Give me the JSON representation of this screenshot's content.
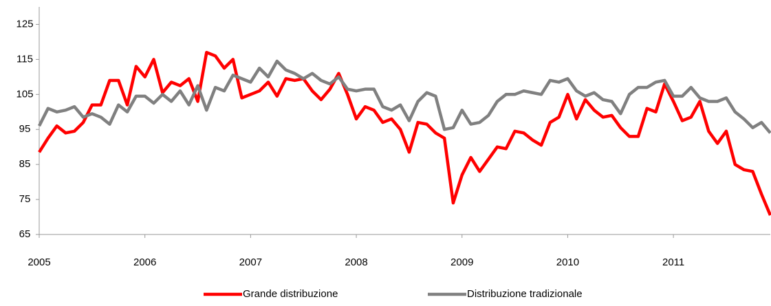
{
  "chart_data": {
    "type": "line",
    "categories": [
      "2005",
      null,
      null,
      null,
      null,
      null,
      null,
      null,
      null,
      null,
      null,
      null,
      "2006",
      null,
      null,
      null,
      null,
      null,
      null,
      null,
      null,
      null,
      null,
      null,
      "2007",
      null,
      null,
      null,
      null,
      null,
      null,
      null,
      null,
      null,
      null,
      null,
      "2008",
      null,
      null,
      null,
      null,
      null,
      null,
      null,
      null,
      null,
      null,
      null,
      "2009",
      null,
      null,
      null,
      null,
      null,
      null,
      null,
      null,
      null,
      null,
      null,
      "2010",
      null,
      null,
      null,
      null,
      null,
      null,
      null,
      null,
      null,
      null,
      null,
      "2011",
      null,
      null,
      null,
      null,
      null,
      null,
      null,
      null,
      null,
      null,
      null
    ],
    "series": [
      {
        "name": "Grande distribuzione",
        "color": "#ff0000",
        "values": [
          88.5,
          92.5,
          96,
          94,
          94.5,
          97,
          102,
          102,
          109,
          109,
          102,
          113,
          110,
          115,
          105.5,
          108.5,
          107.5,
          109.5,
          103,
          117,
          116,
          112.5,
          115,
          104,
          105,
          106,
          108.5,
          104.5,
          109.5,
          109,
          109.5,
          106,
          103.5,
          106.5,
          111,
          105,
          98,
          101.5,
          100.5,
          97,
          98,
          95,
          88.5,
          97,
          96.5,
          94,
          92.5,
          74,
          82,
          87,
          83,
          86.5,
          90,
          89.5,
          94.5,
          94,
          92,
          90.5,
          97,
          98.5,
          105,
          98,
          103.5,
          100.5,
          98.5,
          99,
          95.5,
          93,
          93,
          101,
          100,
          108,
          103,
          97.5,
          98.5,
          103,
          94.5,
          91,
          94.5,
          85,
          83.5,
          83,
          76.5,
          70.5
        ]
      },
      {
        "name": "Distribuzione tradizionale",
        "color": "#808080",
        "values": [
          96,
          101,
          100,
          100.5,
          101.5,
          98.5,
          99.5,
          98.5,
          96.5,
          102,
          100,
          104.5,
          104.5,
          102.5,
          105,
          103,
          106,
          102,
          107.5,
          100.5,
          107,
          106,
          110.5,
          109.5,
          108.5,
          112.5,
          110,
          114.5,
          112,
          111,
          109.5,
          111,
          109,
          108,
          110,
          106.5,
          106,
          106.5,
          106.5,
          101.5,
          100.5,
          102,
          97.5,
          103,
          105.5,
          104.5,
          95,
          95.5,
          100.5,
          96.5,
          97,
          99,
          103,
          105,
          105,
          106,
          105.5,
          105,
          109,
          108.5,
          109.5,
          106,
          104.5,
          105.5,
          103.5,
          103,
          99.5,
          105,
          107,
          107,
          108.5,
          109,
          104.5,
          104.5,
          107,
          104,
          103,
          103,
          104,
          100,
          98,
          95.5,
          97,
          94
        ]
      }
    ],
    "ylim": [
      65,
      130
    ],
    "yticks": [
      65,
      75,
      85,
      95,
      105,
      115,
      125
    ],
    "grid": false,
    "legend": "bottom"
  }
}
